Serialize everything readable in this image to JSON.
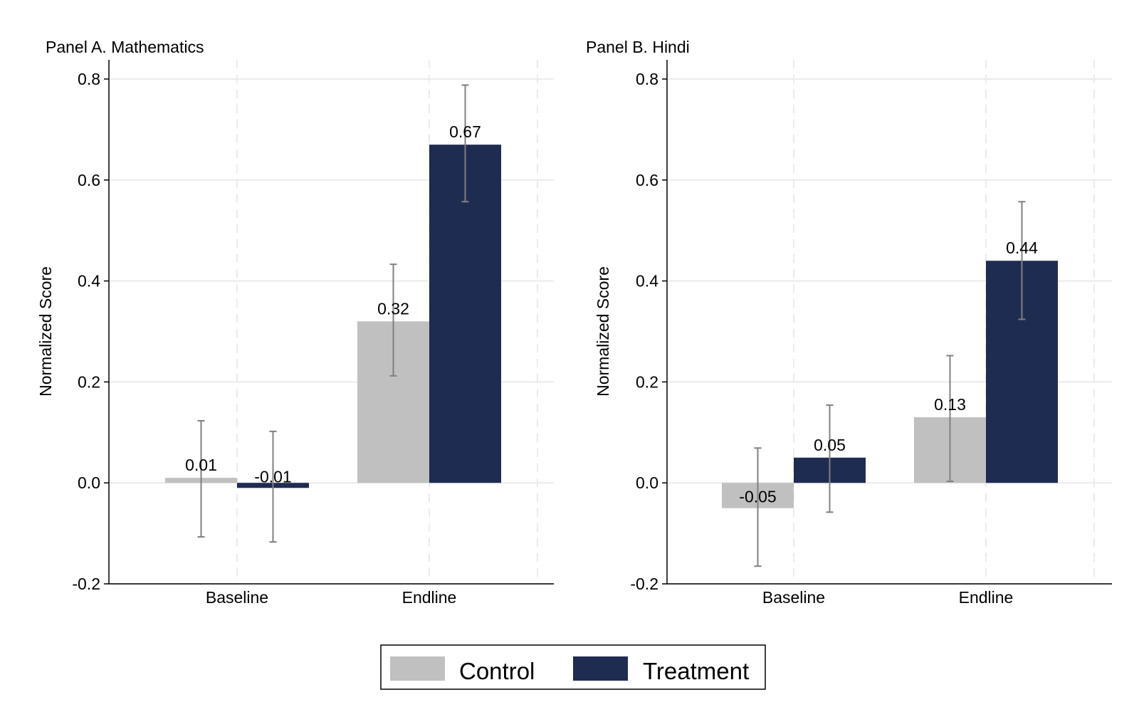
{
  "legend": {
    "items": [
      {
        "label": "Control",
        "color": "#c0c0c0"
      },
      {
        "label": "Treatment",
        "color": "#1f2c52"
      }
    ]
  },
  "colors": {
    "control": "#c0c0c0",
    "treatment": "#1f2c52",
    "error_bar": "#808080",
    "grid": "#ebebeb"
  },
  "chart_data": [
    {
      "type": "bar",
      "title": "Panel A. Mathematics",
      "xlabel": "",
      "ylabel": "Normalized Score",
      "categories": [
        "Baseline",
        "Endline"
      ],
      "ylim": [
        -0.2,
        0.8
      ],
      "yticks": [
        -0.2,
        0.0,
        0.2,
        0.4,
        0.6,
        0.8
      ],
      "ytick_labels": [
        "-0.2",
        "0.0",
        "0.2",
        "0.4",
        "0.6",
        "0.8"
      ],
      "grid": true,
      "series": [
        {
          "name": "Control",
          "values": [
            0.01,
            0.32
          ],
          "labels": [
            "0.01",
            "0.32"
          ],
          "ci_low": [
            -0.107,
            0.212
          ],
          "ci_high": [
            0.123,
            0.433
          ]
        },
        {
          "name": "Treatment",
          "values": [
            -0.01,
            0.67
          ],
          "labels": [
            "-0.01",
            "0.67"
          ],
          "ci_low": [
            -0.117,
            0.557
          ],
          "ci_high": [
            0.102,
            0.788
          ]
        }
      ]
    },
    {
      "type": "bar",
      "title": "Panel B. Hindi",
      "xlabel": "",
      "ylabel": "Normalized Score",
      "categories": [
        "Baseline",
        "Endline"
      ],
      "ylim": [
        -0.2,
        0.8
      ],
      "yticks": [
        -0.2,
        0.0,
        0.2,
        0.4,
        0.6,
        0.8
      ],
      "ytick_labels": [
        "-0.2",
        "0.0",
        "0.2",
        "0.4",
        "0.6",
        "0.8"
      ],
      "grid": true,
      "series": [
        {
          "name": "Control",
          "values": [
            -0.05,
            0.13
          ],
          "labels": [
            "-0.05",
            "0.13"
          ],
          "ci_low": [
            -0.165,
            0.003
          ],
          "ci_high": [
            0.069,
            0.252
          ]
        },
        {
          "name": "Treatment",
          "values": [
            0.05,
            0.44
          ],
          "labels": [
            "0.05",
            "0.44"
          ],
          "ci_low": [
            -0.058,
            0.324
          ],
          "ci_high": [
            0.154,
            0.557
          ]
        }
      ]
    }
  ]
}
